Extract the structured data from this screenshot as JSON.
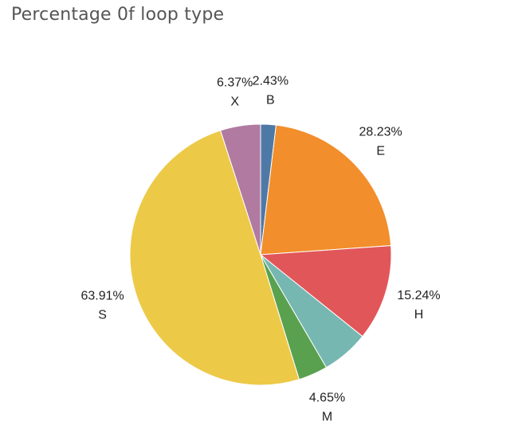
{
  "chart_data": {
    "type": "pie",
    "title": "Percentage 0f loop type",
    "slices": [
      {
        "label": "B",
        "value": 2.43,
        "display": "2.43%",
        "color": "#4E79A7"
      },
      {
        "label": "E",
        "value": 28.23,
        "display": "28.23%",
        "color": "#F28E2B"
      },
      {
        "label": "H",
        "value": 15.24,
        "display": "15.24%",
        "color": "#E15759"
      },
      {
        "label": "M",
        "value": 4.65,
        "display": "4.65%",
        "color": "#59A14F"
      },
      {
        "label": "S",
        "value": 63.91,
        "display": "63.91%",
        "color": "#EDC948"
      },
      {
        "label": "X",
        "value": 6.37,
        "display": "6.37%",
        "color": "#B07AA1"
      }
    ],
    "extra_slice_color": "#76B7B2",
    "start_angle_deg": 0,
    "direction": "clockwise",
    "legend": "none"
  }
}
